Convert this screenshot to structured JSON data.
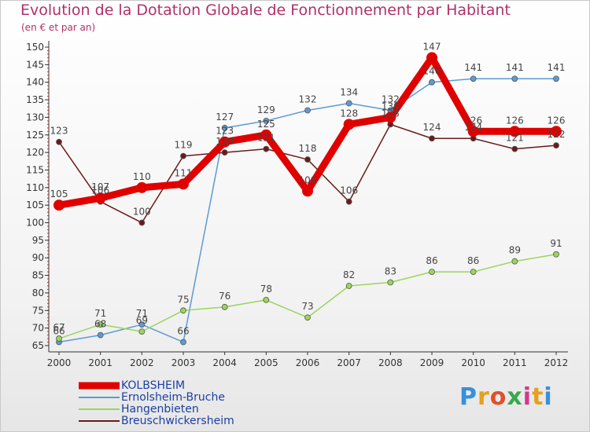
{
  "title": "Evolution de la Dotation Globale de Fonctionnement par Habitant",
  "subtitle": "(en € et par an)",
  "brand": {
    "letters": [
      "P",
      "r",
      "o",
      "x",
      "i",
      "t",
      "i"
    ],
    "colors": [
      "#3a8fd8",
      "#e6a01e",
      "#e0502a",
      "#3aa84a",
      "#d03a8a",
      "#e6a01e",
      "#3a8fd8"
    ]
  },
  "chart_data": {
    "type": "line",
    "title": "Evolution de la Dotation Globale de Fonctionnement par Habitant",
    "ylabel": "(en € et par an)",
    "xlabel": "",
    "x": [
      "2000",
      "2001",
      "2002",
      "2003",
      "2004",
      "2005",
      "2006",
      "2007",
      "2008",
      "2009",
      "2010",
      "2011",
      "2012"
    ],
    "ylim": [
      65,
      150
    ],
    "yticks": [
      "65",
      "70",
      "75",
      "80",
      "85",
      "90",
      "95",
      "100",
      "105",
      "110",
      "115",
      "120",
      "125",
      "130",
      "135",
      "140",
      "145",
      "150"
    ],
    "grid": false,
    "legend_position": "bottom-left",
    "series": [
      {
        "name": "KOLBSHEIM",
        "color": "#e00000",
        "values": [
          105,
          107,
          110,
          111,
          123,
          125,
          109,
          128,
          130,
          147,
          126,
          126,
          126
        ]
      },
      {
        "name": "Ernolsheim-Bruche",
        "color": "#5b9bd5",
        "values": [
          66,
          68,
          71,
          66,
          127,
          129,
          132,
          134,
          132,
          140,
          141,
          141,
          141
        ]
      },
      {
        "name": "Hangenbieten",
        "color": "#9bd55b",
        "values": [
          67,
          71,
          69,
          75,
          76,
          78,
          73,
          82,
          83,
          86,
          86,
          89,
          91
        ]
      },
      {
        "name": "Breuschwickersheim",
        "color": "#6b1a1a",
        "values": [
          123,
          106,
          100,
          119,
          120,
          121,
          118,
          106,
          128,
          124,
          124,
          121,
          122
        ]
      }
    ]
  }
}
